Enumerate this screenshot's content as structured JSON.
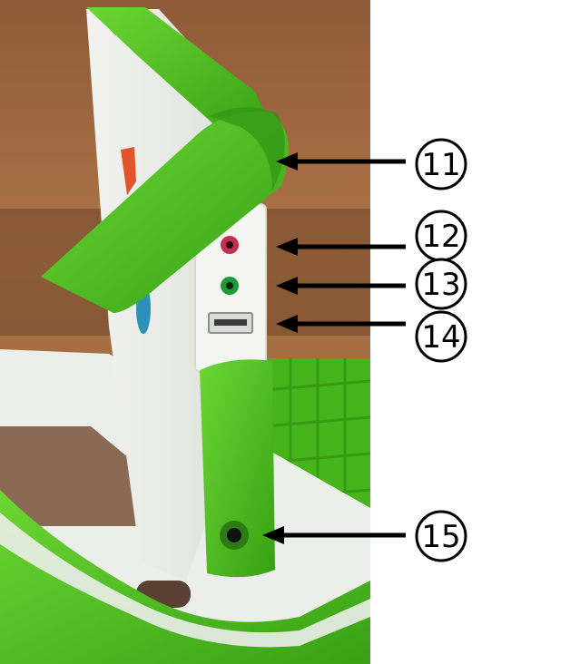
{
  "colors": {
    "background": "#ffffff",
    "xo_green": "#4fbf1f",
    "xo_green_dark": "#2f8a10",
    "case_white": "#eef0ec",
    "table_wood": "#7a5236",
    "wall": "#a56d45",
    "mic_jack": "#c03050",
    "headphone_jack": "#1c9a3a",
    "arrow": "#000000"
  },
  "photo": {
    "subject": "laptop-side-ports-photo"
  },
  "callouts": [
    {
      "id": "11",
      "label": "11"
    },
    {
      "id": "12",
      "label": "12"
    },
    {
      "id": "13",
      "label": "13"
    },
    {
      "id": "14",
      "label": "14"
    },
    {
      "id": "15",
      "label": "15"
    }
  ]
}
